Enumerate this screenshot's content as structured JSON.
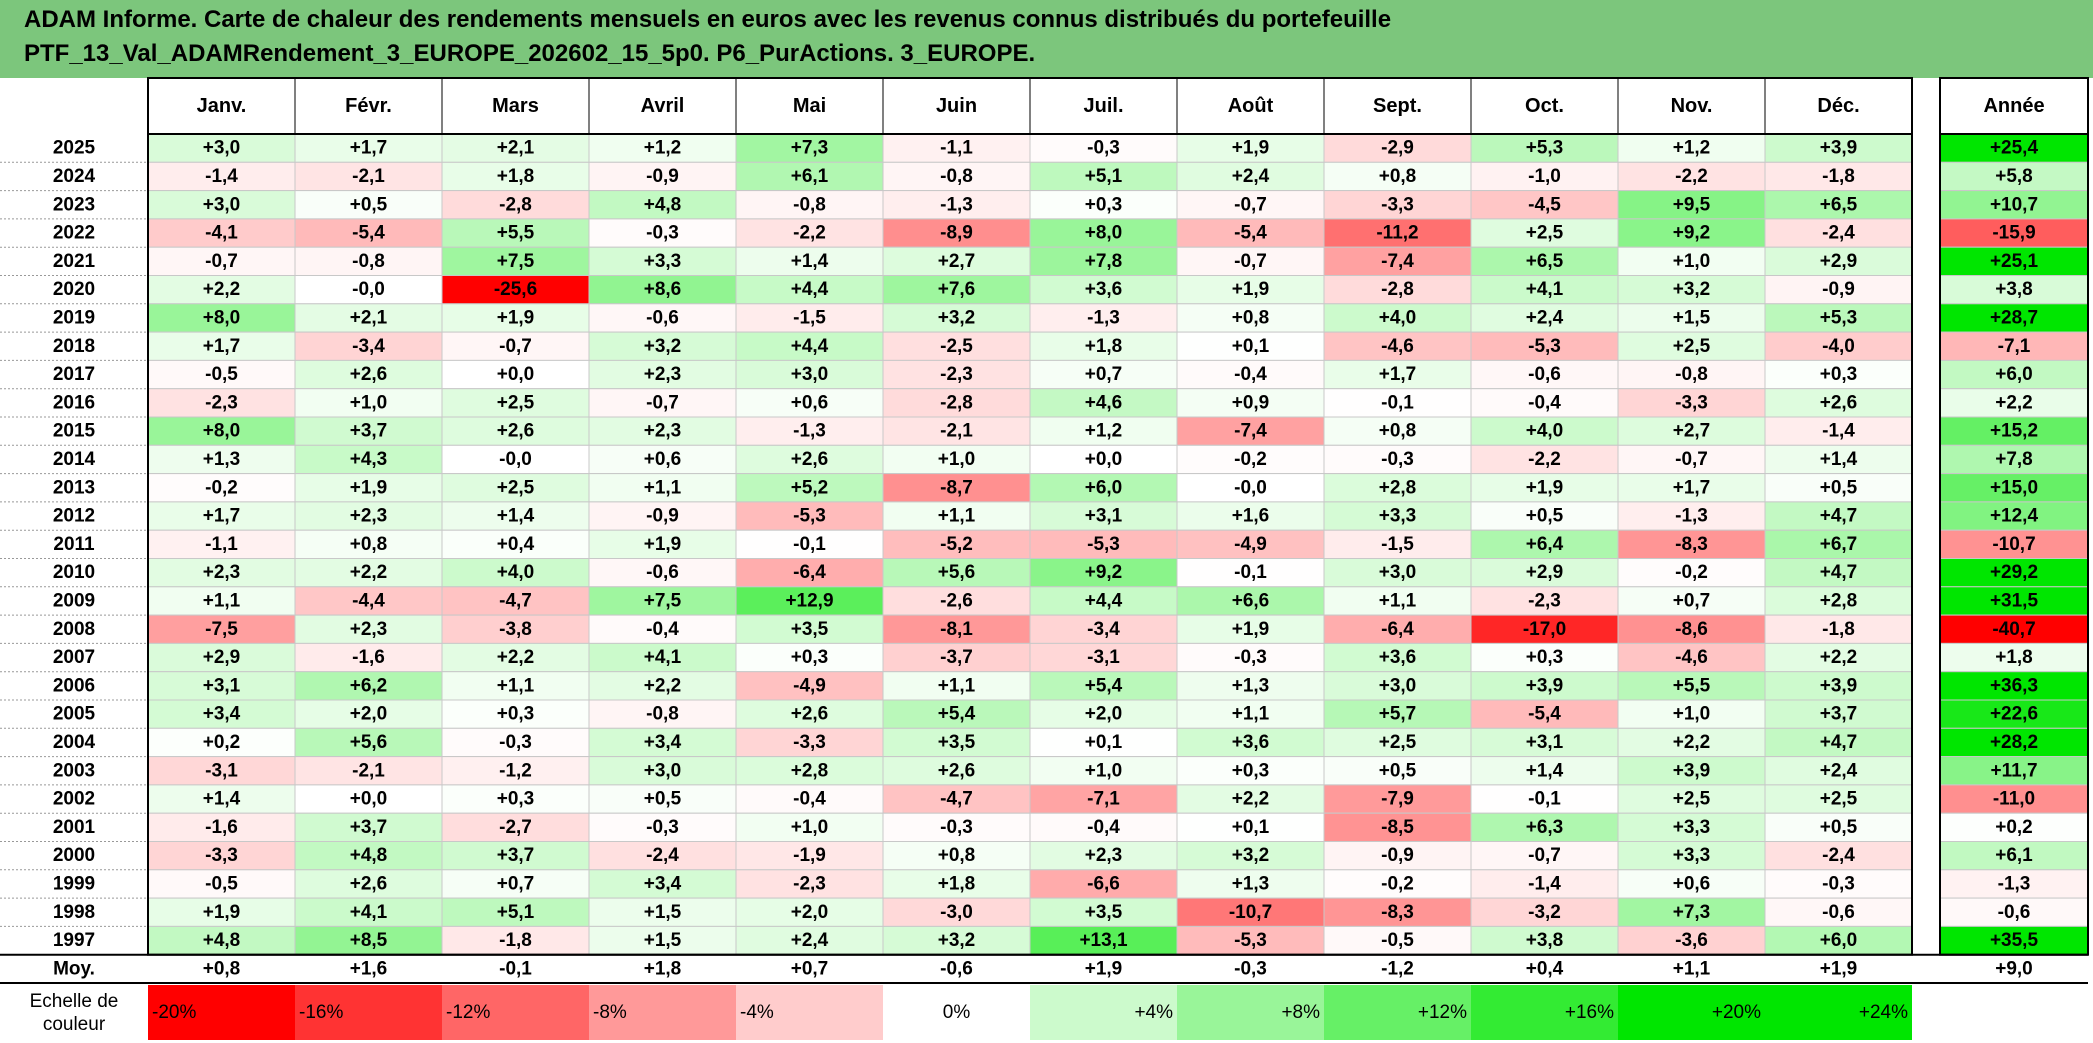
{
  "title": {
    "line1": "ADAM Informe. Carte de chaleur des rendements mensuels en euros avec les revenus connus distribués du portefeuille",
    "line2": "PTF_13_Val_ADAMRendement_3_EUROPE_202602_15_5p0. P6_PurActions. 3_EUROPE."
  },
  "colors": {
    "title_bg": "#7cc67c",
    "neg_max": "#ff0000",
    "pos_max": "#00e600",
    "neutral": "#ffffff"
  },
  "chart_data": {
    "type": "heatmap",
    "columns": [
      "Janv.",
      "Févr.",
      "Mars",
      "Avril",
      "Mai",
      "Juin",
      "Juil.",
      "Août",
      "Sept.",
      "Oct.",
      "Nov.",
      "Déc."
    ],
    "year_column": "Année",
    "rows": [
      {
        "year": "2025",
        "values": [
          3.0,
          1.7,
          2.1,
          1.2,
          7.3,
          -1.1,
          -0.3,
          1.9,
          -2.9,
          5.3,
          1.2,
          3.9
        ],
        "labels": [
          "+3,0",
          "+1,7",
          "+2,1",
          "+1,2",
          "+7,3",
          "-1,1",
          "-0,3",
          "+1,9",
          "-2,9",
          "+5,3",
          "+1,2",
          "+3,9"
        ],
        "annual": 25.4,
        "annual_label": "+25,4"
      },
      {
        "year": "2024",
        "values": [
          -1.4,
          -2.1,
          1.8,
          -0.9,
          6.1,
          -0.8,
          5.1,
          2.4,
          0.8,
          -1.0,
          -2.2,
          -1.8
        ],
        "labels": [
          "-1,4",
          "-2,1",
          "+1,8",
          "-0,9",
          "+6,1",
          "-0,8",
          "+5,1",
          "+2,4",
          "+0,8",
          "-1,0",
          "-2,2",
          "-1,8"
        ],
        "annual": 5.8,
        "annual_label": "+5,8"
      },
      {
        "year": "2023",
        "values": [
          3.0,
          0.5,
          -2.8,
          4.8,
          -0.8,
          -1.3,
          0.3,
          -0.7,
          -3.3,
          -4.5,
          9.5,
          6.5
        ],
        "labels": [
          "+3,0",
          "+0,5",
          "-2,8",
          "+4,8",
          "-0,8",
          "-1,3",
          "+0,3",
          "-0,7",
          "-3,3",
          "-4,5",
          "+9,5",
          "+6,5"
        ],
        "annual": 10.7,
        "annual_label": "+10,7"
      },
      {
        "year": "2022",
        "values": [
          -4.1,
          -5.4,
          5.5,
          -0.3,
          -2.2,
          -8.9,
          8.0,
          -5.4,
          -11.2,
          2.5,
          9.2,
          -2.4
        ],
        "labels": [
          "-4,1",
          "-5,4",
          "+5,5",
          "-0,3",
          "-2,2",
          "-8,9",
          "+8,0",
          "-5,4",
          "-11,2",
          "+2,5",
          "+9,2",
          "-2,4"
        ],
        "annual": -15.9,
        "annual_label": "-15,9"
      },
      {
        "year": "2021",
        "values": [
          -0.7,
          -0.8,
          7.5,
          3.3,
          1.4,
          2.7,
          7.8,
          -0.7,
          -7.4,
          6.5,
          1.0,
          2.9
        ],
        "labels": [
          "-0,7",
          "-0,8",
          "+7,5",
          "+3,3",
          "+1,4",
          "+2,7",
          "+7,8",
          "-0,7",
          "-7,4",
          "+6,5",
          "+1,0",
          "+2,9"
        ],
        "annual": 25.1,
        "annual_label": "+25,1"
      },
      {
        "year": "2020",
        "values": [
          2.2,
          -0.0,
          -25.6,
          8.6,
          4.4,
          7.6,
          3.6,
          1.9,
          -2.8,
          4.1,
          3.2,
          -0.9
        ],
        "labels": [
          "+2,2",
          "-0,0",
          "-25,6",
          "+8,6",
          "+4,4",
          "+7,6",
          "+3,6",
          "+1,9",
          "-2,8",
          "+4,1",
          "+3,2",
          "-0,9"
        ],
        "annual": 3.8,
        "annual_label": "+3,8"
      },
      {
        "year": "2019",
        "values": [
          8.0,
          2.1,
          1.9,
          -0.6,
          -1.5,
          3.2,
          -1.3,
          0.8,
          4.0,
          2.4,
          1.5,
          5.3
        ],
        "labels": [
          "+8,0",
          "+2,1",
          "+1,9",
          "-0,6",
          "-1,5",
          "+3,2",
          "-1,3",
          "+0,8",
          "+4,0",
          "+2,4",
          "+1,5",
          "+5,3"
        ],
        "annual": 28.7,
        "annual_label": "+28,7"
      },
      {
        "year": "2018",
        "values": [
          1.7,
          -3.4,
          -0.7,
          3.2,
          4.4,
          -2.5,
          1.8,
          0.1,
          -4.6,
          -5.3,
          2.5,
          -4.0
        ],
        "labels": [
          "+1,7",
          "-3,4",
          "-0,7",
          "+3,2",
          "+4,4",
          "-2,5",
          "+1,8",
          "+0,1",
          "-4,6",
          "-5,3",
          "+2,5",
          "-4,0"
        ],
        "annual": -7.1,
        "annual_label": "-7,1"
      },
      {
        "year": "2017",
        "values": [
          -0.5,
          2.6,
          0.0,
          2.3,
          3.0,
          -2.3,
          0.7,
          -0.4,
          1.7,
          -0.6,
          -0.8,
          0.3
        ],
        "labels": [
          "-0,5",
          "+2,6",
          "+0,0",
          "+2,3",
          "+3,0",
          "-2,3",
          "+0,7",
          "-0,4",
          "+1,7",
          "-0,6",
          "-0,8",
          "+0,3"
        ],
        "annual": 6.0,
        "annual_label": "+6,0"
      },
      {
        "year": "2016",
        "values": [
          -2.3,
          1.0,
          2.5,
          -0.7,
          0.6,
          -2.8,
          4.6,
          0.9,
          -0.1,
          -0.4,
          -3.3,
          2.6
        ],
        "labels": [
          "-2,3",
          "+1,0",
          "+2,5",
          "-0,7",
          "+0,6",
          "-2,8",
          "+4,6",
          "+0,9",
          "-0,1",
          "-0,4",
          "-3,3",
          "+2,6"
        ],
        "annual": 2.2,
        "annual_label": "+2,2"
      },
      {
        "year": "2015",
        "values": [
          8.0,
          3.7,
          2.6,
          2.3,
          -1.3,
          -2.1,
          1.2,
          -7.4,
          0.8,
          4.0,
          2.7,
          -1.4
        ],
        "labels": [
          "+8,0",
          "+3,7",
          "+2,6",
          "+2,3",
          "-1,3",
          "-2,1",
          "+1,2",
          "-7,4",
          "+0,8",
          "+4,0",
          "+2,7",
          "-1,4"
        ],
        "annual": 15.2,
        "annual_label": "+15,2"
      },
      {
        "year": "2014",
        "values": [
          1.3,
          4.3,
          -0.0,
          0.6,
          2.6,
          1.0,
          0.0,
          -0.2,
          -0.3,
          -2.2,
          -0.7,
          1.4
        ],
        "labels": [
          "+1,3",
          "+4,3",
          "-0,0",
          "+0,6",
          "+2,6",
          "+1,0",
          "+0,0",
          "-0,2",
          "-0,3",
          "-2,2",
          "-0,7",
          "+1,4"
        ],
        "annual": 7.8,
        "annual_label": "+7,8"
      },
      {
        "year": "2013",
        "values": [
          -0.2,
          1.9,
          2.5,
          1.1,
          5.2,
          -8.7,
          6.0,
          -0.0,
          2.8,
          1.9,
          1.7,
          0.5
        ],
        "labels": [
          "-0,2",
          "+1,9",
          "+2,5",
          "+1,1",
          "+5,2",
          "-8,7",
          "+6,0",
          "-0,0",
          "+2,8",
          "+1,9",
          "+1,7",
          "+0,5"
        ],
        "annual": 15.0,
        "annual_label": "+15,0"
      },
      {
        "year": "2012",
        "values": [
          1.7,
          2.3,
          1.4,
          -0.9,
          -5.3,
          1.1,
          3.1,
          1.6,
          3.3,
          0.5,
          -1.3,
          4.7
        ],
        "labels": [
          "+1,7",
          "+2,3",
          "+1,4",
          "-0,9",
          "-5,3",
          "+1,1",
          "+3,1",
          "+1,6",
          "+3,3",
          "+0,5",
          "-1,3",
          "+4,7"
        ],
        "annual": 12.4,
        "annual_label": "+12,4"
      },
      {
        "year": "2011",
        "values": [
          -1.1,
          0.8,
          0.4,
          1.9,
          -0.1,
          -5.2,
          -5.3,
          -4.9,
          -1.5,
          6.4,
          -8.3,
          6.7
        ],
        "labels": [
          "-1,1",
          "+0,8",
          "+0,4",
          "+1,9",
          "-0,1",
          "-5,2",
          "-5,3",
          "-4,9",
          "-1,5",
          "+6,4",
          "-8,3",
          "+6,7"
        ],
        "annual": -10.7,
        "annual_label": "-10,7"
      },
      {
        "year": "2010",
        "values": [
          2.3,
          2.2,
          4.0,
          -0.6,
          -6.4,
          5.6,
          9.2,
          -0.1,
          3.0,
          2.9,
          -0.2,
          4.7
        ],
        "labels": [
          "+2,3",
          "+2,2",
          "+4,0",
          "-0,6",
          "-6,4",
          "+5,6",
          "+9,2",
          "-0,1",
          "+3,0",
          "+2,9",
          "-0,2",
          "+4,7"
        ],
        "annual": 29.2,
        "annual_label": "+29,2"
      },
      {
        "year": "2009",
        "values": [
          1.1,
          -4.4,
          -4.7,
          7.5,
          12.9,
          -2.6,
          4.4,
          6.6,
          1.1,
          -2.3,
          0.7,
          2.8
        ],
        "labels": [
          "+1,1",
          "-4,4",
          "-4,7",
          "+7,5",
          "+12,9",
          "-2,6",
          "+4,4",
          "+6,6",
          "+1,1",
          "-2,3",
          "+0,7",
          "+2,8"
        ],
        "annual": 31.5,
        "annual_label": "+31,5"
      },
      {
        "year": "2008",
        "values": [
          -7.5,
          2.3,
          -3.8,
          -0.4,
          3.5,
          -8.1,
          -3.4,
          1.9,
          -6.4,
          -17.0,
          -8.6,
          -1.8
        ],
        "labels": [
          "-7,5",
          "+2,3",
          "-3,8",
          "-0,4",
          "+3,5",
          "-8,1",
          "-3,4",
          "+1,9",
          "-6,4",
          "-17,0",
          "-8,6",
          "-1,8"
        ],
        "annual": -40.7,
        "annual_label": "-40,7"
      },
      {
        "year": "2007",
        "values": [
          2.9,
          -1.6,
          2.2,
          4.1,
          0.3,
          -3.7,
          -3.1,
          -0.3,
          3.6,
          0.3,
          -4.6,
          2.2
        ],
        "labels": [
          "+2,9",
          "-1,6",
          "+2,2",
          "+4,1",
          "+0,3",
          "-3,7",
          "-3,1",
          "-0,3",
          "+3,6",
          "+0,3",
          "-4,6",
          "+2,2"
        ],
        "annual": 1.8,
        "annual_label": "+1,8"
      },
      {
        "year": "2006",
        "values": [
          3.1,
          6.2,
          1.1,
          2.2,
          -4.9,
          1.1,
          5.4,
          1.3,
          3.0,
          3.9,
          5.5,
          3.9
        ],
        "labels": [
          "+3,1",
          "+6,2",
          "+1,1",
          "+2,2",
          "-4,9",
          "+1,1",
          "+5,4",
          "+1,3",
          "+3,0",
          "+3,9",
          "+5,5",
          "+3,9"
        ],
        "annual": 36.3,
        "annual_label": "+36,3"
      },
      {
        "year": "2005",
        "values": [
          3.4,
          2.0,
          0.3,
          -0.8,
          2.6,
          5.4,
          2.0,
          1.1,
          5.7,
          -5.4,
          1.0,
          3.7
        ],
        "labels": [
          "+3,4",
          "+2,0",
          "+0,3",
          "-0,8",
          "+2,6",
          "+5,4",
          "+2,0",
          "+1,1",
          "+5,7",
          "-5,4",
          "+1,0",
          "+3,7"
        ],
        "annual": 22.6,
        "annual_label": "+22,6"
      },
      {
        "year": "2004",
        "values": [
          0.2,
          5.6,
          -0.3,
          3.4,
          -3.3,
          3.5,
          0.1,
          3.6,
          2.5,
          3.1,
          2.2,
          4.7
        ],
        "labels": [
          "+0,2",
          "+5,6",
          "-0,3",
          "+3,4",
          "-3,3",
          "+3,5",
          "+0,1",
          "+3,6",
          "+2,5",
          "+3,1",
          "+2,2",
          "+4,7"
        ],
        "annual": 28.2,
        "annual_label": "+28,2"
      },
      {
        "year": "2003",
        "values": [
          -3.1,
          -2.1,
          -1.2,
          3.0,
          2.8,
          2.6,
          1.0,
          0.3,
          0.5,
          1.4,
          3.9,
          2.4
        ],
        "labels": [
          "-3,1",
          "-2,1",
          "-1,2",
          "+3,0",
          "+2,8",
          "+2,6",
          "+1,0",
          "+0,3",
          "+0,5",
          "+1,4",
          "+3,9",
          "+2,4"
        ],
        "annual": 11.7,
        "annual_label": "+11,7"
      },
      {
        "year": "2002",
        "values": [
          1.4,
          0.0,
          0.3,
          0.5,
          -0.4,
          -4.7,
          -7.1,
          2.2,
          -7.9,
          -0.1,
          2.5,
          2.5
        ],
        "labels": [
          "+1,4",
          "+0,0",
          "+0,3",
          "+0,5",
          "-0,4",
          "-4,7",
          "-7,1",
          "+2,2",
          "-7,9",
          "-0,1",
          "+2,5",
          "+2,5"
        ],
        "annual": -11.0,
        "annual_label": "-11,0"
      },
      {
        "year": "2001",
        "values": [
          -1.6,
          3.7,
          -2.7,
          -0.3,
          1.0,
          -0.3,
          -0.4,
          0.1,
          -8.5,
          6.3,
          3.3,
          0.5
        ],
        "labels": [
          "-1,6",
          "+3,7",
          "-2,7",
          "-0,3",
          "+1,0",
          "-0,3",
          "-0,4",
          "+0,1",
          "-8,5",
          "+6,3",
          "+3,3",
          "+0,5"
        ],
        "annual": 0.2,
        "annual_label": "+0,2"
      },
      {
        "year": "2000",
        "values": [
          -3.3,
          4.8,
          3.7,
          -2.4,
          -1.9,
          0.8,
          2.3,
          3.2,
          -0.9,
          -0.7,
          3.3,
          -2.4
        ],
        "labels": [
          "-3,3",
          "+4,8",
          "+3,7",
          "-2,4",
          "-1,9",
          "+0,8",
          "+2,3",
          "+3,2",
          "-0,9",
          "-0,7",
          "+3,3",
          "-2,4"
        ],
        "annual": 6.1,
        "annual_label": "+6,1"
      },
      {
        "year": "1999",
        "values": [
          -0.5,
          2.6,
          0.7,
          3.4,
          -2.3,
          1.8,
          -6.6,
          1.3,
          -0.2,
          -1.4,
          0.6,
          -0.3
        ],
        "labels": [
          "-0,5",
          "+2,6",
          "+0,7",
          "+3,4",
          "-2,3",
          "+1,8",
          "-6,6",
          "+1,3",
          "-0,2",
          "-1,4",
          "+0,6",
          "-0,3"
        ],
        "annual": -1.3,
        "annual_label": "-1,3"
      },
      {
        "year": "1998",
        "values": [
          1.9,
          4.1,
          5.1,
          1.5,
          2.0,
          -3.0,
          3.5,
          -10.7,
          -8.3,
          -3.2,
          7.3,
          -0.6
        ],
        "labels": [
          "+1,9",
          "+4,1",
          "+5,1",
          "+1,5",
          "+2,0",
          "-3,0",
          "+3,5",
          "-10,7",
          "-8,3",
          "-3,2",
          "+7,3",
          "-0,6"
        ],
        "annual": -0.6,
        "annual_label": "-0,6"
      },
      {
        "year": "1997",
        "values": [
          4.8,
          8.5,
          -1.8,
          1.5,
          2.4,
          3.2,
          13.1,
          -5.3,
          -0.5,
          3.8,
          -3.6,
          6.0
        ],
        "labels": [
          "+4,8",
          "+8,5",
          "-1,8",
          "+1,5",
          "+2,4",
          "+3,2",
          "+13,1",
          "-5,3",
          "-0,5",
          "+3,8",
          "-3,6",
          "+6,0"
        ],
        "annual": 35.5,
        "annual_label": "+35,5"
      }
    ],
    "average": {
      "label": "Moy.",
      "labels": [
        "+0,8",
        "+1,6",
        "-0,1",
        "+1,8",
        "+0,7",
        "-0,6",
        "+1,9",
        "-0,3",
        "-1,2",
        "+0,4",
        "+1,1",
        "+1,9"
      ],
      "annual_label": "+9,0"
    },
    "scale": {
      "label_line1": "Echelle de",
      "label_line2": "couleur",
      "steps": [
        {
          "value": -20,
          "label": "-20%"
        },
        {
          "value": -16,
          "label": "-16%"
        },
        {
          "value": -12,
          "label": "-12%"
        },
        {
          "value": -8,
          "label": "-8%"
        },
        {
          "value": -4,
          "label": "-4%"
        },
        {
          "value": 0,
          "label": "0%"
        },
        {
          "value": 4,
          "label": "+4%"
        },
        {
          "value": 8,
          "label": "+8%"
        },
        {
          "value": 12,
          "label": "+12%"
        },
        {
          "value": 16,
          "label": "+16%"
        },
        {
          "value": 20,
          "label": "+20%"
        },
        {
          "value": 24,
          "label": "+24%"
        }
      ]
    }
  }
}
